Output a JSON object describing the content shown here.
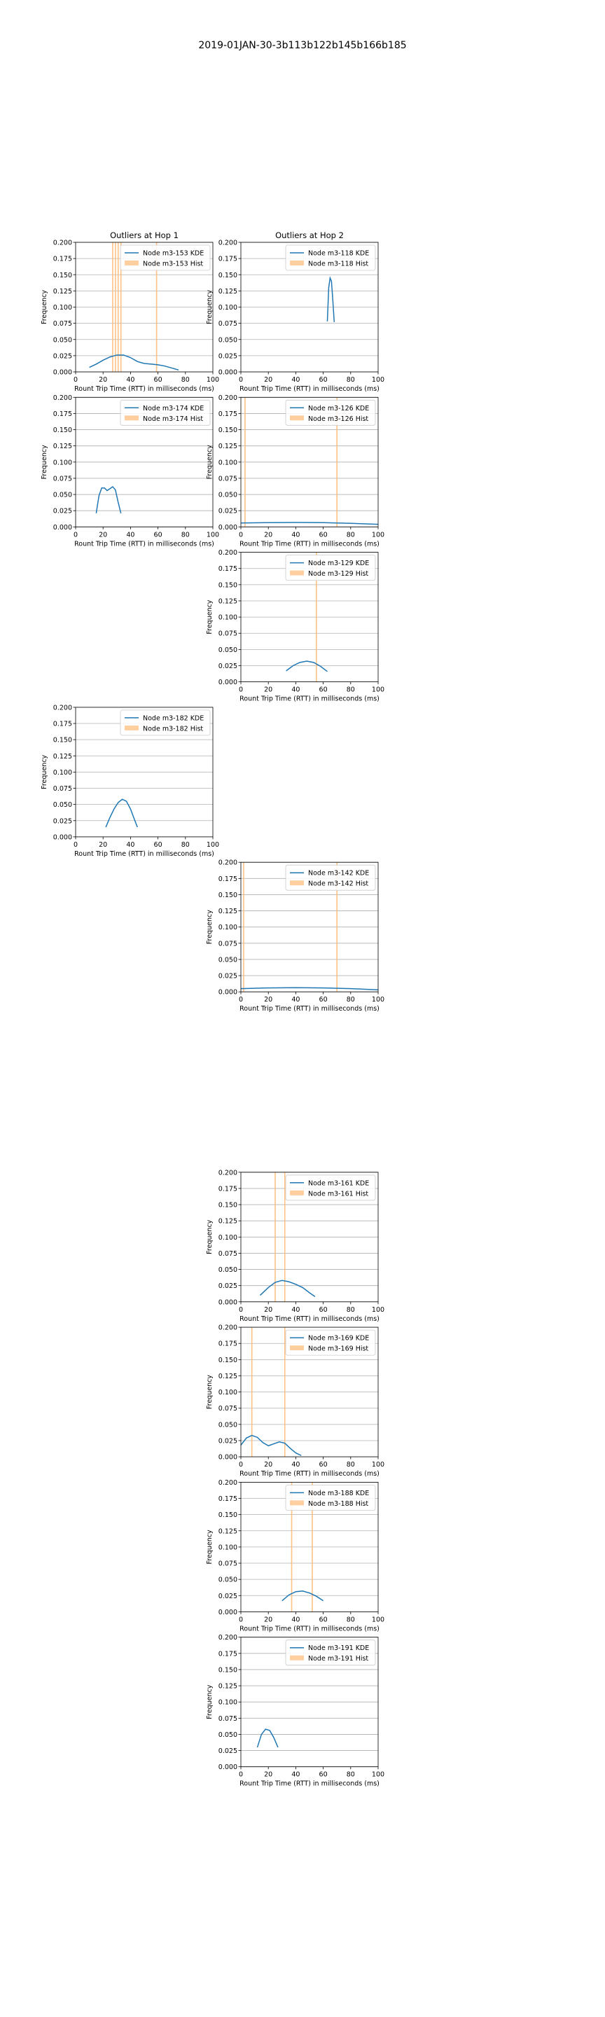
{
  "figure": {
    "suptitle": "2019-01JAN-30-3b113b122b145b166b185",
    "column_titles": [
      "Outliers at Hop 1",
      "Outliers at Hop 2"
    ]
  },
  "colors": {
    "kde": "#1f77b4",
    "hist": "#ffbb78",
    "grid": "#b0b0b0"
  },
  "chart_data": [
    {
      "type": "line",
      "row": 0,
      "col": 0,
      "title": "Outliers at Hop 1",
      "xlabel": "Rount Trip Time (RTT) in milliseconds (ms)",
      "ylabel": "Frequency",
      "xlim": [
        0,
        100
      ],
      "ylim": [
        0,
        0.2
      ],
      "xticks": [
        0,
        20,
        40,
        60,
        80,
        100
      ],
      "yticks": [
        0.0,
        0.025,
        0.05,
        0.075,
        0.1,
        0.125,
        0.15,
        0.175,
        0.2
      ],
      "grid": "y",
      "legend": "top-right",
      "series": [
        {
          "name": "Node m3-153 KDE",
          "kind": "kde",
          "x": [
            10,
            15,
            20,
            25,
            30,
            35,
            40,
            45,
            50,
            55,
            60,
            65,
            70,
            75
          ],
          "y": [
            0.007,
            0.012,
            0.018,
            0.023,
            0.026,
            0.026,
            0.022,
            0.016,
            0.013,
            0.012,
            0.011,
            0.009,
            0.006,
            0.003
          ]
        },
        {
          "name": "Node m3-153 Hist",
          "kind": "hist",
          "bars": [
            27,
            29,
            31,
            33,
            59
          ]
        }
      ]
    },
    {
      "type": "line",
      "row": 0,
      "col": 1,
      "title": "Outliers at Hop 2",
      "xlabel": "Rount Trip Time (RTT) in milliseconds (ms)",
      "ylabel": "Frequency",
      "xlim": [
        0,
        100
      ],
      "ylim": [
        0,
        0.2
      ],
      "xticks": [
        0,
        20,
        40,
        60,
        80,
        100
      ],
      "yticks": [
        0.0,
        0.025,
        0.05,
        0.075,
        0.1,
        0.125,
        0.15,
        0.175,
        0.2
      ],
      "grid": "y",
      "legend": "top-right",
      "series": [
        {
          "name": "Node m3-118 KDE",
          "kind": "kde",
          "x": [
            63,
            64,
            65,
            66,
            67,
            68
          ],
          "y": [
            0.078,
            0.13,
            0.145,
            0.14,
            0.11,
            0.077
          ]
        },
        {
          "name": "Node m3-118 Hist",
          "kind": "hist",
          "bars": []
        }
      ]
    },
    {
      "type": "line",
      "row": 1,
      "col": 0,
      "xlabel": "Rount Trip Time (RTT) in milliseconds (ms)",
      "ylabel": "Frequency",
      "xlim": [
        0,
        100
      ],
      "ylim": [
        0,
        0.2
      ],
      "xticks": [
        0,
        20,
        40,
        60,
        80,
        100
      ],
      "yticks": [
        0.0,
        0.025,
        0.05,
        0.075,
        0.1,
        0.125,
        0.15,
        0.175,
        0.2
      ],
      "grid": "y",
      "legend": "top-right",
      "series": [
        {
          "name": "Node m3-174 KDE",
          "kind": "kde",
          "x": [
            15,
            17,
            19,
            21,
            23,
            25,
            27,
            29,
            31,
            33
          ],
          "y": [
            0.021,
            0.048,
            0.06,
            0.06,
            0.056,
            0.059,
            0.062,
            0.057,
            0.038,
            0.021
          ]
        },
        {
          "name": "Node m3-174 Hist",
          "kind": "hist",
          "bars": []
        }
      ]
    },
    {
      "type": "line",
      "row": 1,
      "col": 1,
      "xlabel": "Rount Trip Time (RTT) in milliseconds (ms)",
      "ylabel": "Frequency",
      "xlim": [
        0,
        100
      ],
      "ylim": [
        0,
        0.2
      ],
      "xticks": [
        0,
        20,
        40,
        60,
        80,
        100
      ],
      "yticks": [
        0.0,
        0.025,
        0.05,
        0.075,
        0.1,
        0.125,
        0.15,
        0.175,
        0.2
      ],
      "grid": "y",
      "legend": "top-right",
      "series": [
        {
          "name": "Node m3-126 KDE",
          "kind": "kde",
          "x": [
            0,
            20,
            40,
            60,
            80,
            100
          ],
          "y": [
            0.006,
            0.0065,
            0.0068,
            0.0065,
            0.0055,
            0.004
          ]
        },
        {
          "name": "Node m3-126 Hist",
          "kind": "hist",
          "bars": [
            3,
            70
          ]
        }
      ]
    },
    {
      "type": "line",
      "row": 2,
      "col": 1,
      "xlabel": "Rount Trip Time (RTT) in milliseconds (ms)",
      "ylabel": "Frequency",
      "xlim": [
        0,
        100
      ],
      "ylim": [
        0,
        0.2
      ],
      "xticks": [
        0,
        20,
        40,
        60,
        80,
        100
      ],
      "yticks": [
        0.0,
        0.025,
        0.05,
        0.075,
        0.1,
        0.125,
        0.15,
        0.175,
        0.2
      ],
      "grid": "y",
      "legend": "top-right",
      "series": [
        {
          "name": "Node m3-129 KDE",
          "kind": "kde",
          "x": [
            33,
            38,
            43,
            48,
            53,
            58,
            63
          ],
          "y": [
            0.017,
            0.025,
            0.03,
            0.032,
            0.03,
            0.024,
            0.016
          ]
        },
        {
          "name": "Node m3-129 Hist",
          "kind": "hist",
          "bars": [
            55
          ]
        }
      ]
    },
    {
      "type": "line",
      "row": 3,
      "col": 0,
      "xlabel": "Rount Trip Time (RTT) in milliseconds (ms)",
      "ylabel": "Frequency",
      "xlim": [
        0,
        100
      ],
      "ylim": [
        0,
        0.2
      ],
      "xticks": [
        0,
        20,
        40,
        60,
        80,
        100
      ],
      "yticks": [
        0.0,
        0.025,
        0.05,
        0.075,
        0.1,
        0.125,
        0.15,
        0.175,
        0.2
      ],
      "grid": "y",
      "legend": "top-right",
      "series": [
        {
          "name": "Node m3-182 KDE",
          "kind": "kde",
          "x": [
            22,
            25,
            28,
            31,
            34,
            37,
            40,
            43,
            45
          ],
          "y": [
            0.015,
            0.03,
            0.043,
            0.053,
            0.058,
            0.055,
            0.043,
            0.026,
            0.015
          ]
        },
        {
          "name": "Node m3-182 Hist",
          "kind": "hist",
          "bars": []
        }
      ]
    },
    {
      "type": "line",
      "row": 4,
      "col": 1,
      "xlabel": "Rount Trip Time (RTT) in milliseconds (ms)",
      "ylabel": "Frequency",
      "xlim": [
        0,
        100
      ],
      "ylim": [
        0,
        0.2
      ],
      "xticks": [
        0,
        20,
        40,
        60,
        80,
        100
      ],
      "yticks": [
        0.0,
        0.025,
        0.05,
        0.075,
        0.1,
        0.125,
        0.15,
        0.175,
        0.2
      ],
      "grid": "y",
      "legend": "top-right",
      "series": [
        {
          "name": "Node m3-142 KDE",
          "kind": "kde",
          "x": [
            0,
            20,
            40,
            60,
            80,
            100
          ],
          "y": [
            0.005,
            0.006,
            0.0065,
            0.006,
            0.005,
            0.003
          ]
        },
        {
          "name": "Node m3-142 Hist",
          "kind": "hist",
          "bars": [
            2,
            70
          ]
        }
      ]
    },
    {
      "type": "line",
      "row": 6,
      "col": 1,
      "xlabel": "Rount Trip Time (RTT) in milliseconds (ms)",
      "ylabel": "Frequency",
      "xlim": [
        0,
        100
      ],
      "ylim": [
        0,
        0.2
      ],
      "xticks": [
        0,
        20,
        40,
        60,
        80,
        100
      ],
      "yticks": [
        0.0,
        0.025,
        0.05,
        0.075,
        0.1,
        0.125,
        0.15,
        0.175,
        0.2
      ],
      "grid": "y",
      "legend": "top-right",
      "series": [
        {
          "name": "Node m3-161 KDE",
          "kind": "kde",
          "x": [
            14,
            20,
            25,
            30,
            35,
            40,
            45,
            50,
            54
          ],
          "y": [
            0.01,
            0.022,
            0.03,
            0.033,
            0.031,
            0.027,
            0.022,
            0.014,
            0.008
          ]
        },
        {
          "name": "Node m3-161 Hist",
          "kind": "hist",
          "bars": [
            25,
            32
          ]
        }
      ]
    },
    {
      "type": "line",
      "row": 7,
      "col": 1,
      "xlabel": "Rount Trip Time (RTT) in milliseconds (ms)",
      "ylabel": "Frequency",
      "xlim": [
        0,
        100
      ],
      "ylim": [
        0,
        0.2
      ],
      "xticks": [
        0,
        20,
        40,
        60,
        80,
        100
      ],
      "yticks": [
        0.0,
        0.025,
        0.05,
        0.075,
        0.1,
        0.125,
        0.15,
        0.175,
        0.2
      ],
      "grid": "y",
      "legend": "top-right",
      "series": [
        {
          "name": "Node m3-169 KDE",
          "kind": "kde",
          "x": [
            0,
            4,
            8,
            12,
            16,
            20,
            24,
            28,
            32,
            36,
            40,
            44
          ],
          "y": [
            0.018,
            0.029,
            0.033,
            0.03,
            0.022,
            0.017,
            0.02,
            0.023,
            0.021,
            0.013,
            0.006,
            0.002
          ]
        },
        {
          "name": "Node m3-169 Hist",
          "kind": "hist",
          "bars": [
            8,
            32
          ]
        }
      ]
    },
    {
      "type": "line",
      "row": 8,
      "col": 1,
      "xlabel": "Rount Trip Time (RTT) in milliseconds (ms)",
      "ylabel": "Frequency",
      "xlim": [
        0,
        100
      ],
      "ylim": [
        0,
        0.2
      ],
      "xticks": [
        0,
        20,
        40,
        60,
        80,
        100
      ],
      "yticks": [
        0.0,
        0.025,
        0.05,
        0.075,
        0.1,
        0.125,
        0.15,
        0.175,
        0.2
      ],
      "grid": "y",
      "legend": "top-right",
      "series": [
        {
          "name": "Node m3-188 KDE",
          "kind": "kde",
          "x": [
            30,
            35,
            40,
            45,
            50,
            55,
            60
          ],
          "y": [
            0.017,
            0.026,
            0.031,
            0.032,
            0.029,
            0.024,
            0.017
          ]
        },
        {
          "name": "Node m3-188 Hist",
          "kind": "hist",
          "bars": [
            37,
            52
          ]
        }
      ]
    },
    {
      "type": "line",
      "row": 9,
      "col": 1,
      "xlabel": "Rount Trip Time (RTT) in milliseconds (ms)",
      "ylabel": "Frequency",
      "xlim": [
        0,
        100
      ],
      "ylim": [
        0,
        0.2
      ],
      "xticks": [
        0,
        20,
        40,
        60,
        80,
        100
      ],
      "yticks": [
        0.0,
        0.025,
        0.05,
        0.075,
        0.1,
        0.125,
        0.15,
        0.175,
        0.2
      ],
      "grid": "y",
      "legend": "top-right",
      "series": [
        {
          "name": "Node m3-191 KDE",
          "kind": "kde",
          "x": [
            12,
            15,
            18,
            21,
            24,
            27
          ],
          "y": [
            0.03,
            0.05,
            0.058,
            0.056,
            0.045,
            0.03
          ]
        },
        {
          "name": "Node m3-191 Hist",
          "kind": "hist",
          "bars": []
        }
      ]
    }
  ]
}
